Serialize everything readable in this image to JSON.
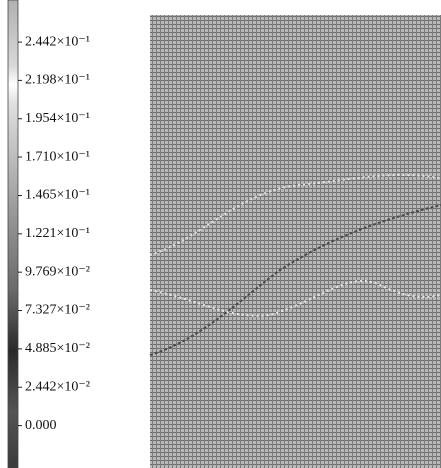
{
  "chart_data": {
    "type": "contour",
    "colorbar": {
      "lim": [
        -0.027,
        0.271
      ],
      "ticks": [
        {
          "value": 0.2442,
          "label": "2.442×10⁻¹"
        },
        {
          "value": 0.2198,
          "label": "2.198×10⁻¹"
        },
        {
          "value": 0.1954,
          "label": "1.954×10⁻¹"
        },
        {
          "value": 0.171,
          "label": "1.710×10⁻¹"
        },
        {
          "value": 0.1465,
          "label": "1.465×10⁻¹"
        },
        {
          "value": 0.1221,
          "label": "1.221×10⁻¹"
        },
        {
          "value": 0.09769,
          "label": "9.769×10⁻²"
        },
        {
          "value": 0.07327,
          "label": "7.327×10⁻²"
        },
        {
          "value": 0.04885,
          "label": "4.885×10⁻²"
        },
        {
          "value": 0.02442,
          "label": "2.442×10⁻²"
        },
        {
          "value": 0,
          "label": "0.000"
        }
      ]
    }
  }
}
